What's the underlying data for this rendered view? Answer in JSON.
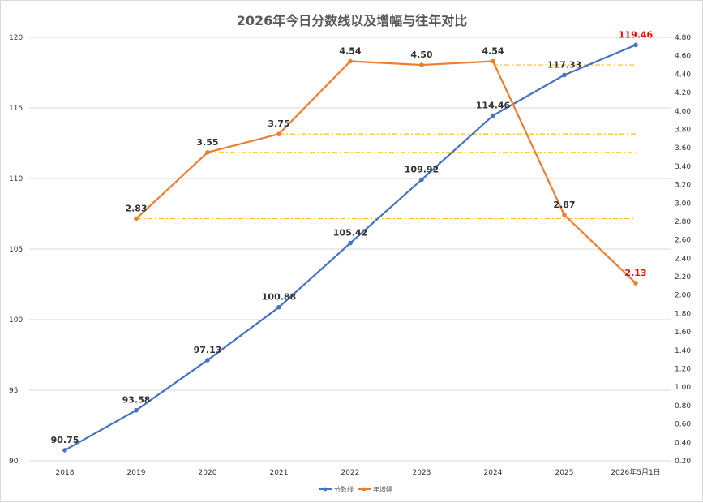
{
  "chart_data": {
    "type": "line",
    "title": "2026年今日分数线以及增幅与往年对比",
    "categories": [
      "2018",
      "2019",
      "2020",
      "2021",
      "2022",
      "2023",
      "2024",
      "2025",
      "2026年5月1日"
    ],
    "series": [
      {
        "name": "分数线",
        "axis": "left",
        "color": "#4472c4",
        "values": [
          90.75,
          93.58,
          97.13,
          100.88,
          105.42,
          109.92,
          114.46,
          117.33,
          119.46
        ],
        "labels": [
          "90.75",
          "93.58",
          "97.13",
          "100.88",
          "105.42",
          "109.92",
          "114.46",
          "117.33",
          "119.46"
        ],
        "highlight_last": true
      },
      {
        "name": "年增幅",
        "axis": "right",
        "color": "#ed7d31",
        "values": [
          null,
          2.83,
          3.55,
          3.75,
          4.54,
          4.5,
          4.54,
          2.87,
          2.13
        ],
        "labels": [
          null,
          "2.83",
          "3.55",
          "3.75",
          "4.54",
          "4.50",
          "4.54",
          "2.87",
          "2.13"
        ],
        "highlight_last": true
      }
    ],
    "left_axis": {
      "min": 90,
      "max": 120,
      "ticks": [
        "90",
        "95",
        "100",
        "105",
        "110",
        "115",
        "120"
      ]
    },
    "right_axis": {
      "min": 0.2,
      "max": 4.8,
      "ticks": [
        "0.20",
        "0.40",
        "0.60",
        "0.80",
        "1.00",
        "1.20",
        "1.40",
        "1.60",
        "1.80",
        "2.00",
        "2.20",
        "2.40",
        "2.60",
        "2.80",
        "3.00",
        "3.20",
        "3.40",
        "3.60",
        "3.80",
        "4.00",
        "4.20",
        "4.40",
        "4.60",
        "4.80"
      ]
    },
    "reference_lines": [
      {
        "axis": "right",
        "value": 2.83,
        "from_index": 1,
        "to_index": 8
      },
      {
        "axis": "right",
        "value": 3.55,
        "from_index": 2,
        "to_index": 8
      },
      {
        "axis": "right",
        "value": 3.75,
        "from_index": 3,
        "to_index": 8
      },
      {
        "axis": "right",
        "value": 4.5,
        "from_index": 6,
        "to_index": 8
      }
    ],
    "reference_color": "#ffc000",
    "highlight_color": "#ff0000",
    "grid": true,
    "legend_position": "bottom"
  }
}
